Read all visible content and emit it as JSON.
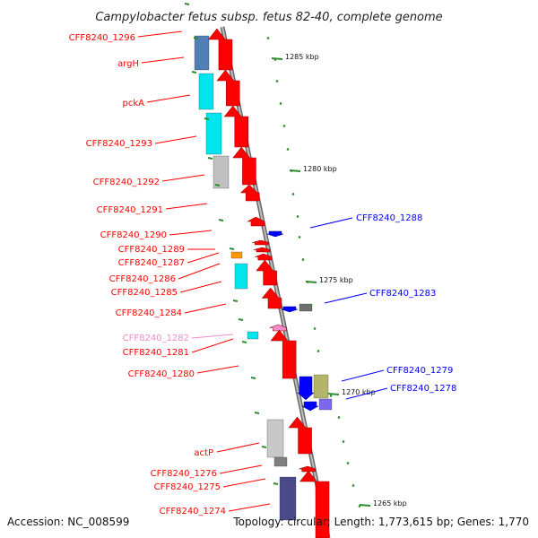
{
  "title": "Campylobacter fetus subsp. fetus 82-40, complete genome",
  "footer": {
    "accession": "Accession: NC_008599",
    "summary": "Topology: circular; Length: 1,773,615 bp; Genes: 1,770"
  },
  "scale_ticks": [
    "1285 kbp",
    "1280 kbp",
    "1275 kbp",
    "1270 kbp",
    "1265 kbp"
  ],
  "colors": {
    "forward_label": "#cc0000",
    "reverse_label": "#0000cc",
    "faded_label": "#f08cc8",
    "backbone": "#8a8a8a",
    "tick_marks": "#2e8b2e"
  },
  "genes": [
    {
      "id": "CFF8240_1296",
      "label": "CFF8240_1296",
      "color": "#ff0000"
    },
    {
      "id": "argH",
      "label": "argH",
      "color": "#ff0000"
    },
    {
      "id": "pckA",
      "label": "pckA",
      "color": "#ff0000"
    },
    {
      "id": "CFF8240_1293",
      "label": "CFF8240_1293",
      "color": "#ff0000"
    },
    {
      "id": "CFF8240_1292",
      "label": "CFF8240_1292",
      "color": "#ff0000"
    },
    {
      "id": "CFF8240_1291",
      "label": "CFF8240_1291",
      "color": "#ff0000"
    },
    {
      "id": "CFF8240_1290",
      "label": "CFF8240_1290",
      "color": "#ff0000"
    },
    {
      "id": "CFF8240_1289",
      "label": "CFF8240_1289",
      "color": "#ff0000"
    },
    {
      "id": "CFF8240_1287",
      "label": "CFF8240_1287",
      "color": "#ff0000"
    },
    {
      "id": "CFF8240_1286",
      "label": "CFF8240_1286",
      "color": "#ff0000"
    },
    {
      "id": "CFF8240_1285",
      "label": "CFF8240_1285",
      "color": "#ff0000"
    },
    {
      "id": "CFF8240_1284",
      "label": "CFF8240_1284",
      "color": "#ff0000"
    },
    {
      "id": "CFF8240_1282",
      "label": "CFF8240_1282",
      "color": "#f08cc8"
    },
    {
      "id": "CFF8240_1281",
      "label": "CFF8240_1281",
      "color": "#ff0000"
    },
    {
      "id": "CFF8240_1280",
      "label": "CFF8240_1280",
      "color": "#ff0000"
    },
    {
      "id": "actP",
      "label": "actP",
      "color": "#ff0000"
    },
    {
      "id": "CFF8240_1276",
      "label": "CFF8240_1276",
      "color": "#ff0000"
    },
    {
      "id": "CFF8240_1275",
      "label": "CFF8240_1275",
      "color": "#ff0000"
    },
    {
      "id": "CFF8240_1274",
      "label": "CFF8240_1274",
      "color": "#ff0000"
    },
    {
      "id": "CFF8240_1288",
      "label": "CFF8240_1288",
      "color": "#0000ff"
    },
    {
      "id": "CFF8240_1283",
      "label": "CFF8240_1283",
      "color": "#0000ff"
    },
    {
      "id": "CFF8240_1279",
      "label": "CFF8240_1279",
      "color": "#0000ff"
    },
    {
      "id": "CFF8240_1278",
      "label": "CFF8240_1278",
      "color": "#0000ff"
    }
  ]
}
